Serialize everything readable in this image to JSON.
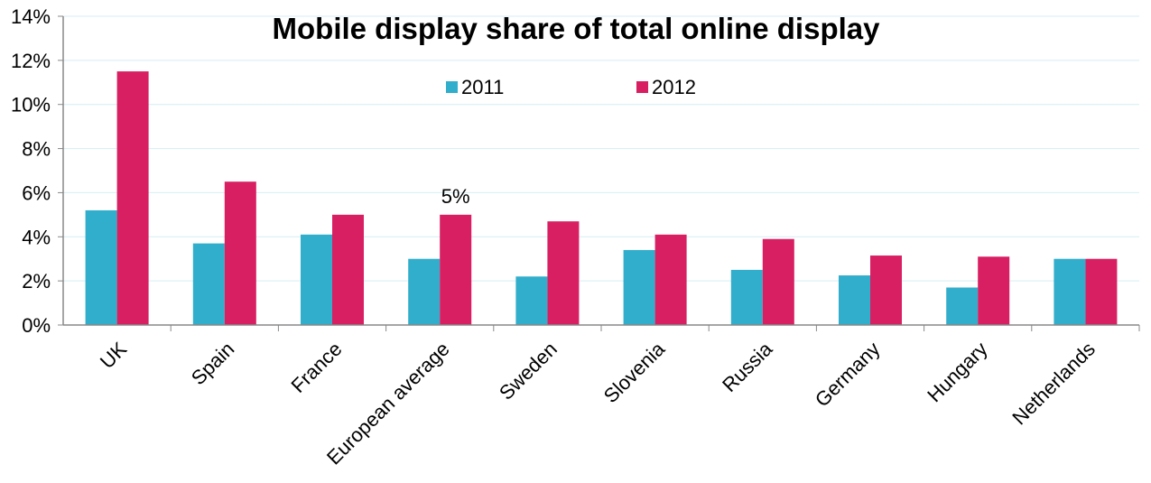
{
  "chart_data": {
    "type": "bar",
    "title": "Mobile display share of total online display",
    "xlabel": "",
    "ylabel": "",
    "ylim": [
      0,
      14
    ],
    "yticks": [
      "0%",
      "2%",
      "4%",
      "6%",
      "8%",
      "10%",
      "12%",
      "14%"
    ],
    "grid": true,
    "legend_position": "top-center",
    "categories": [
      "UK",
      "Spain",
      "France",
      "European average",
      "Sweden",
      "Slovenia",
      "Russia",
      "Germany",
      "Hungary",
      "Netherlands"
    ],
    "series": [
      {
        "name": "2011",
        "color": "#31AECB",
        "values": [
          5.2,
          3.7,
          4.1,
          3.0,
          2.2,
          3.4,
          2.5,
          2.25,
          1.7,
          3.0
        ]
      },
      {
        "name": "2012",
        "color": "#D81F62",
        "values": [
          11.5,
          6.5,
          5.0,
          5.0,
          4.7,
          4.1,
          3.9,
          3.15,
          3.1,
          3.0
        ]
      }
    ],
    "annotations": [
      {
        "category": "European average",
        "series": "2012",
        "text": "5%"
      }
    ]
  }
}
